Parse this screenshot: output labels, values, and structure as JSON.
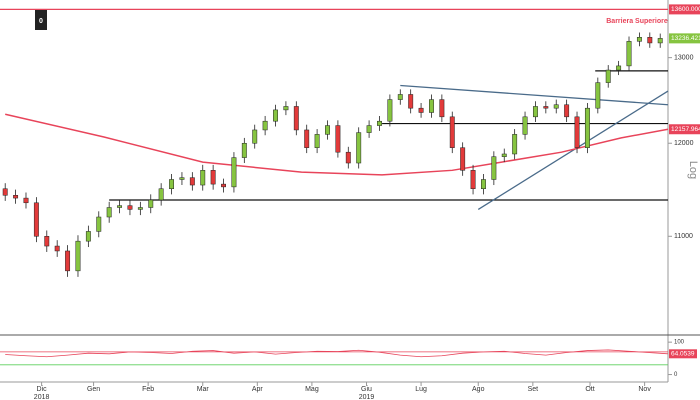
{
  "chart_data": {
    "type": "candlestick",
    "x": [
      0,
      4,
      8,
      12,
      16,
      20,
      24,
      28,
      32,
      36,
      40,
      44,
      48,
      52,
      56,
      60,
      64,
      68,
      72,
      76,
      80,
      84,
      88,
      92,
      96,
      100,
      104,
      108,
      112,
      116,
      120,
      124,
      128,
      132,
      136,
      140,
      144,
      148,
      152,
      156,
      160,
      164,
      168,
      172,
      176,
      180,
      184,
      188,
      192,
      196,
      200,
      204,
      208,
      212,
      216,
      220,
      224,
      228,
      232,
      236,
      240,
      244,
      248,
      252
    ],
    "open": [
      11500,
      11430,
      11400,
      11350,
      11000,
      10900,
      10850,
      10650,
      10950,
      11050,
      11200,
      11300,
      11320,
      11280,
      11300,
      11380,
      11500,
      11600,
      11620,
      11540,
      11700,
      11550,
      11520,
      11840,
      12000,
      12150,
      12250,
      12380,
      12420,
      12150,
      11950,
      12100,
      12200,
      11900,
      11780,
      12120,
      12200,
      12250,
      12500,
      12560,
      12400,
      12350,
      12500,
      12300,
      11950,
      11700,
      11500,
      11600,
      11850,
      11880,
      12100,
      12300,
      12420,
      12400,
      12440,
      12300,
      11950,
      12400,
      12700,
      12850,
      12900,
      13200,
      13250,
      13180
    ],
    "high": [
      11560,
      11490,
      11460,
      11410,
      11060,
      10960,
      10910,
      11010,
      11110,
      11260,
      11360,
      11380,
      11380,
      11360,
      11440,
      11560,
      11660,
      11680,
      11680,
      11760,
      11760,
      11610,
      11900,
      12060,
      12210,
      12310,
      12440,
      12480,
      12480,
      12210,
      12160,
      12260,
      12260,
      11960,
      12180,
      12260,
      12310,
      12560,
      12620,
      12620,
      12460,
      12560,
      12560,
      12360,
      12010,
      11760,
      11660,
      11910,
      11940,
      12160,
      12360,
      12480,
      12480,
      12500,
      12500,
      12360,
      12460,
      12760,
      12910,
      12960,
      13260,
      13310,
      13310,
      13296
    ],
    "low": [
      11370,
      11340,
      11290,
      10940,
      10840,
      10790,
      10590,
      10590,
      10890,
      10990,
      11140,
      11240,
      11220,
      11220,
      11240,
      11320,
      11440,
      11540,
      11480,
      11480,
      11490,
      11460,
      11460,
      11780,
      11940,
      12090,
      12190,
      12320,
      12090,
      11890,
      11890,
      12040,
      11840,
      11720,
      11720,
      12060,
      12140,
      12190,
      12440,
      12340,
      12290,
      12290,
      12240,
      11890,
      11640,
      11440,
      11440,
      11540,
      11790,
      11820,
      12040,
      12240,
      12340,
      12340,
      12240,
      11890,
      11890,
      12340,
      12640,
      12790,
      12840,
      13140,
      13120,
      13120
    ],
    "close": [
      11430,
      11400,
      11350,
      11000,
      10900,
      10850,
      10650,
      10950,
      11050,
      11200,
      11300,
      11320,
      11280,
      11300,
      11380,
      11500,
      11600,
      11620,
      11540,
      11700,
      11550,
      11520,
      11840,
      12000,
      12150,
      12250,
      12380,
      12420,
      12150,
      11950,
      12100,
      12200,
      11900,
      11780,
      12120,
      12200,
      12250,
      12500,
      12560,
      12400,
      12350,
      12500,
      12300,
      11950,
      11700,
      11500,
      11600,
      11850,
      11880,
      12100,
      12300,
      12420,
      12400,
      12440,
      12300,
      11950,
      12400,
      12700,
      12850,
      12900,
      13200,
      13250,
      13180,
      13236.4219
    ],
    "up_color": "#86c440",
    "down_color": "#e23a3a",
    "xlim": [
      -2,
      255
    ],
    "xticks": [
      {
        "value": 14,
        "label": "Dic"
      },
      {
        "value": 34,
        "label": "Gen"
      },
      {
        "value": 55,
        "label": "Feb"
      },
      {
        "value": 76,
        "label": "Mar"
      },
      {
        "value": 97,
        "label": "Apr"
      },
      {
        "value": 118,
        "label": "Mag"
      },
      {
        "value": 139,
        "label": "Giu"
      },
      {
        "value": 160,
        "label": "Lug"
      },
      {
        "value": 182,
        "label": "Ago"
      },
      {
        "value": 203,
        "label": "Set"
      },
      {
        "value": 225,
        "label": "Ott"
      },
      {
        "value": 246,
        "label": "Nov"
      }
    ],
    "year_labels": [
      {
        "value": 14,
        "label": "2018"
      },
      {
        "value": 139,
        "label": "2019"
      }
    ],
    "ylim": [
      10030,
      13720
    ],
    "yticks": [
      11000,
      12000,
      13000
    ],
    "log_scale": true,
    "scale_label": "Log",
    "corner_label": "0",
    "moving_average": {
      "color": "#e8445a",
      "x": [
        0,
        38,
        76,
        114,
        145,
        172,
        191,
        214,
        237,
        255
      ],
      "values": [
        12330,
        12070,
        11790,
        11680,
        11650,
        11700,
        11790,
        11900,
        12060,
        12157.9648
      ],
      "last_label": "12157.9648"
    },
    "last_price_label": "13236.4219",
    "barrier": {
      "name": "Barriera Superiore",
      "value": 13600,
      "label": "13600.0000",
      "color": "#e8445a"
    },
    "levels": [
      {
        "value": 12223,
        "x": [
          145,
          255
        ]
      },
      {
        "value": 11380,
        "x": [
          40,
          255
        ]
      },
      {
        "value": 12840,
        "x": [
          227,
          255
        ]
      }
    ],
    "trendlines": {
      "color": "#4a6b8a",
      "lines": [
        {
          "x": [
            152,
            255
          ],
          "values": [
            12666,
            12440
          ]
        },
        {
          "x": [
            182,
            255
          ],
          "values": [
            11280,
            12600
          ]
        }
      ]
    },
    "oscillator": {
      "color": "#e8445a",
      "x": [
        0,
        8,
        16,
        24,
        32,
        40,
        48,
        56,
        64,
        72,
        80,
        88,
        96,
        104,
        112,
        120,
        128,
        136,
        144,
        152,
        160,
        168,
        176,
        184,
        192,
        200,
        208,
        216,
        224,
        232,
        240,
        255
      ],
      "values": [
        62,
        58,
        55,
        60,
        66,
        64,
        70,
        68,
        65,
        72,
        74,
        66,
        70,
        63,
        68,
        72,
        71,
        75,
        69,
        60,
        55,
        58,
        66,
        70,
        72,
        65,
        60,
        68,
        74,
        76,
        72,
        64.0539
      ],
      "last_label": "64.0539",
      "ylim": [
        -23,
        119
      ],
      "yticks": [
        0,
        100
      ],
      "levels": [
        {
          "value": 70,
          "color": "#e8445a"
        },
        {
          "value": 30,
          "color": "#5ccf5c"
        }
      ]
    }
  }
}
